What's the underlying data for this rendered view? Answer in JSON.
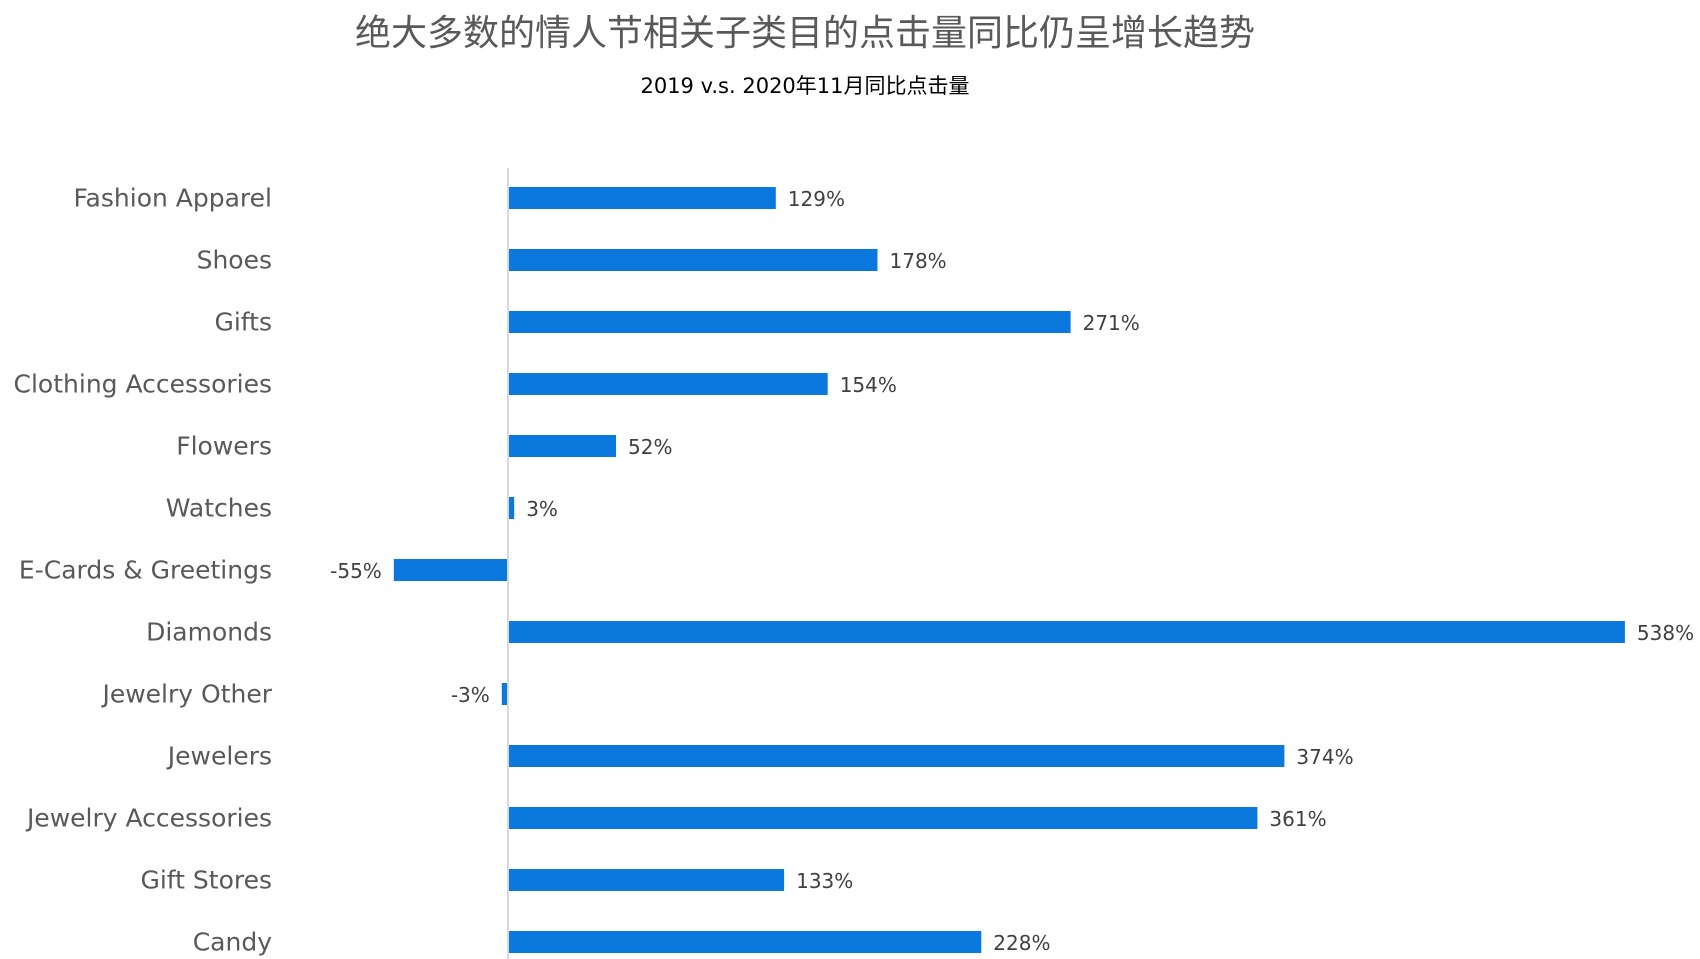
{
  "chart_data": {
    "type": "bar",
    "orientation": "horizontal",
    "title": "绝大多数的情人节相关子类目的点击量同比仍呈增长趋势",
    "subtitle": "2019 v.s. 2020年11月同比点击量",
    "categories": [
      "Fashion Apparel",
      "Shoes",
      "Gifts",
      "Clothing Accessories",
      "Flowers",
      "Watches",
      "E-Cards & Greetings",
      "Diamonds",
      "Jewelry Other",
      "Jewelers",
      "Jewelry Accessories",
      "Gift Stores",
      "Candy"
    ],
    "values": [
      129,
      178,
      271,
      154,
      52,
      3,
      -55,
      538,
      -3,
      374,
      361,
      133,
      228
    ],
    "value_labels": [
      "129%",
      "178%",
      "271%",
      "154%",
      "52%",
      "3%",
      "-55%",
      "538%",
      "-3%",
      "374%",
      "361%",
      "133%",
      "228%"
    ],
    "value_unit": "%",
    "bar_color": "#0a78dc",
    "axis_color": "#d9d9d9",
    "grid": false,
    "legend": "none"
  }
}
